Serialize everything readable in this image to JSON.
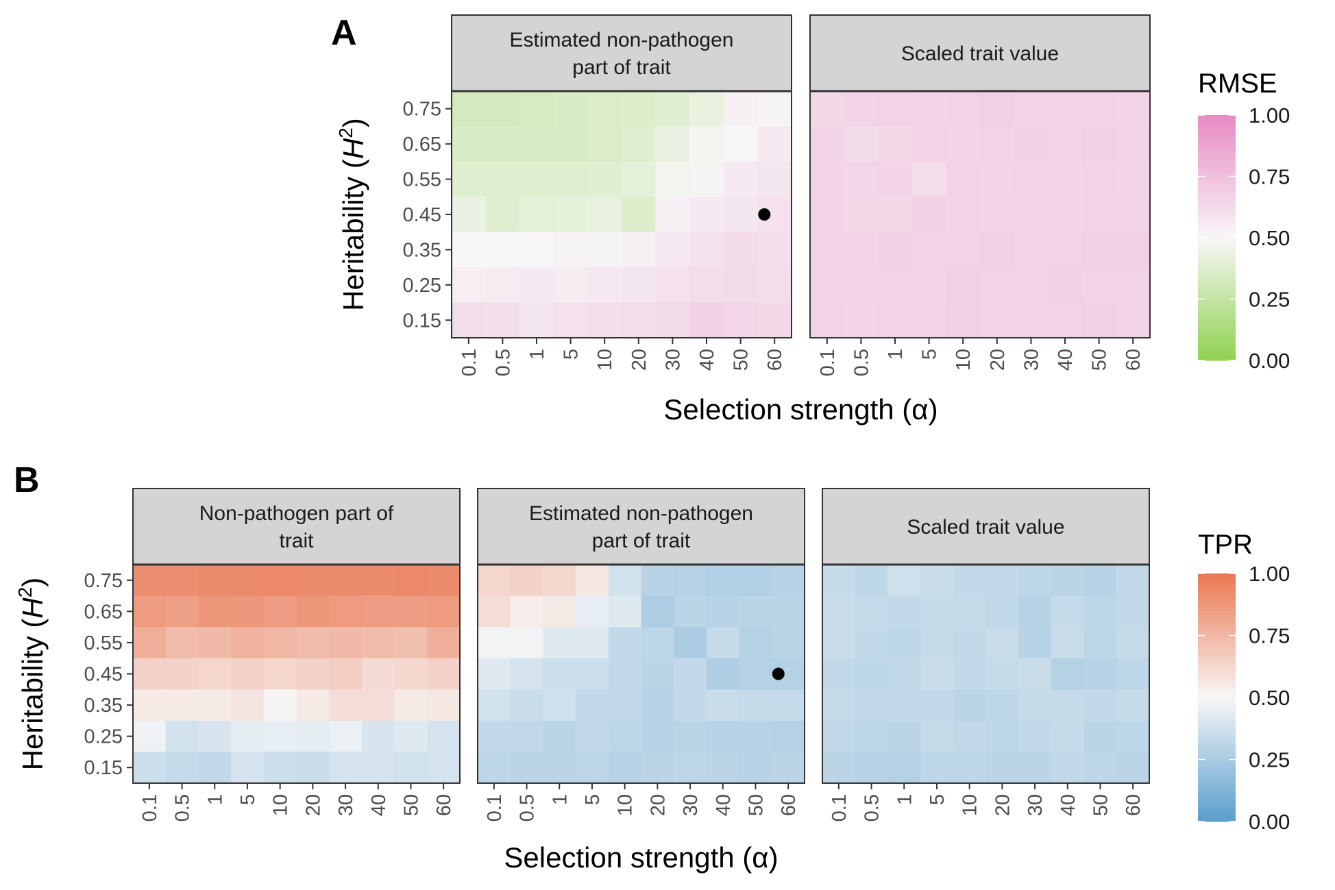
{
  "figure": {
    "panel_labels": [
      "A",
      "B"
    ],
    "marker_note": "black point marks alpha=60, H2=0.45"
  },
  "chart_data": [
    {
      "type": "heatmap",
      "panel": "A",
      "xlabel": "Selection strength (α)",
      "ylabel_text": "Heritability (",
      "ylabel_var": "H",
      "ylabel_sup": "2",
      "ylabel_close": ")",
      "x_categories": [
        "0.1",
        "0.5",
        "1",
        "5",
        "10",
        "20",
        "30",
        "40",
        "50",
        "60"
      ],
      "y_categories": [
        "0.75",
        "0.65",
        "0.55",
        "0.45",
        "0.35",
        "0.25",
        "0.15"
      ],
      "colorbar": {
        "title": "RMSE",
        "range": [
          0,
          1
        ],
        "ticks": [
          "1.00",
          "0.75",
          "0.50",
          "0.25",
          "0.00"
        ],
        "low_color": "#8fd14f",
        "mid_color": "#f7f7f7",
        "high_color": "#e78ac3"
      },
      "marker": {
        "x": "60",
        "y": "0.45"
      },
      "facets": [
        {
          "title_lines": [
            "Estimated non-pathogen",
            "part of trait"
          ],
          "values": [
            [
              0.33,
              0.33,
              0.34,
              0.35,
              0.36,
              0.37,
              0.39,
              0.43,
              0.53,
              0.52
            ],
            [
              0.35,
              0.35,
              0.35,
              0.35,
              0.36,
              0.38,
              0.44,
              0.48,
              0.51,
              0.56
            ],
            [
              0.38,
              0.38,
              0.38,
              0.38,
              0.39,
              0.41,
              0.47,
              0.52,
              0.56,
              0.58
            ],
            [
              0.44,
              0.39,
              0.41,
              0.42,
              0.43,
              0.37,
              0.53,
              0.56,
              0.58,
              0.6
            ],
            [
              0.5,
              0.5,
              0.51,
              0.52,
              0.52,
              0.53,
              0.57,
              0.59,
              0.63,
              0.61
            ],
            [
              0.54,
              0.55,
              0.56,
              0.55,
              0.57,
              0.58,
              0.6,
              0.62,
              0.63,
              0.62
            ],
            [
              0.62,
              0.61,
              0.58,
              0.6,
              0.61,
              0.62,
              0.63,
              0.68,
              0.65,
              0.64
            ]
          ]
        },
        {
          "title_lines": [
            "Scaled trait value"
          ],
          "values": [
            [
              0.64,
              0.66,
              0.67,
              0.66,
              0.67,
              0.68,
              0.67,
              0.67,
              0.67,
              0.66
            ],
            [
              0.66,
              0.63,
              0.64,
              0.67,
              0.66,
              0.67,
              0.68,
              0.66,
              0.68,
              0.67
            ],
            [
              0.66,
              0.65,
              0.66,
              0.62,
              0.67,
              0.66,
              0.67,
              0.66,
              0.67,
              0.66
            ],
            [
              0.67,
              0.64,
              0.64,
              0.68,
              0.67,
              0.66,
              0.66,
              0.66,
              0.67,
              0.67
            ],
            [
              0.67,
              0.67,
              0.68,
              0.67,
              0.67,
              0.68,
              0.67,
              0.67,
              0.68,
              0.68
            ],
            [
              0.67,
              0.67,
              0.67,
              0.66,
              0.68,
              0.67,
              0.67,
              0.68,
              0.67,
              0.67
            ],
            [
              0.67,
              0.66,
              0.67,
              0.67,
              0.68,
              0.67,
              0.67,
              0.67,
              0.68,
              0.67
            ]
          ]
        }
      ]
    },
    {
      "type": "heatmap",
      "panel": "B",
      "xlabel": "Selection strength (α)",
      "ylabel_text": "Heritability (",
      "ylabel_var": "H",
      "ylabel_sup": "2",
      "ylabel_close": ")",
      "x_categories": [
        "0.1",
        "0.5",
        "1",
        "5",
        "10",
        "20",
        "30",
        "40",
        "50",
        "60"
      ],
      "y_categories": [
        "0.75",
        "0.65",
        "0.55",
        "0.45",
        "0.35",
        "0.25",
        "0.15"
      ],
      "colorbar": {
        "title": "TPR",
        "range": [
          0,
          1
        ],
        "ticks": [
          "1.00",
          "0.75",
          "0.50",
          "0.25",
          "0.00"
        ],
        "low_color": "#5a9ecd",
        "mid_color": "#f7f7f7",
        "high_color": "#ea7752"
      },
      "marker": {
        "x": "60",
        "y": "0.45"
      },
      "facets": [
        {
          "title_lines": [
            "Non-pathogen part of",
            "trait"
          ],
          "values": [
            [
              0.91,
              0.91,
              0.92,
              0.92,
              0.93,
              0.92,
              0.92,
              0.92,
              0.93,
              0.92
            ],
            [
              0.86,
              0.84,
              0.88,
              0.87,
              0.85,
              0.88,
              0.86,
              0.85,
              0.85,
              0.86
            ],
            [
              0.78,
              0.73,
              0.74,
              0.77,
              0.75,
              0.73,
              0.74,
              0.73,
              0.72,
              0.78
            ],
            [
              0.64,
              0.64,
              0.63,
              0.64,
              0.63,
              0.64,
              0.66,
              0.61,
              0.62,
              0.64
            ],
            [
              0.55,
              0.55,
              0.55,
              0.57,
              0.51,
              0.55,
              0.6,
              0.6,
              0.55,
              0.56
            ],
            [
              0.47,
              0.38,
              0.4,
              0.44,
              0.45,
              0.44,
              0.46,
              0.4,
              0.42,
              0.39
            ],
            [
              0.36,
              0.34,
              0.33,
              0.39,
              0.36,
              0.35,
              0.39,
              0.39,
              0.38,
              0.39
            ]
          ]
        },
        {
          "title_lines": [
            "Estimated non-pathogen",
            "part of trait"
          ],
          "values": [
            [
              0.63,
              0.65,
              0.62,
              0.56,
              0.38,
              0.3,
              0.29,
              0.28,
              0.28,
              0.3
            ],
            [
              0.6,
              0.54,
              0.55,
              0.45,
              0.42,
              0.27,
              0.31,
              0.3,
              0.31,
              0.31
            ],
            [
              0.48,
              0.48,
              0.42,
              0.42,
              0.33,
              0.32,
              0.26,
              0.34,
              0.29,
              0.31
            ],
            [
              0.42,
              0.39,
              0.36,
              0.36,
              0.33,
              0.31,
              0.33,
              0.27,
              0.29,
              0.29
            ],
            [
              0.38,
              0.35,
              0.37,
              0.33,
              0.33,
              0.3,
              0.33,
              0.35,
              0.34,
              0.34
            ],
            [
              0.33,
              0.33,
              0.31,
              0.33,
              0.32,
              0.3,
              0.31,
              0.3,
              0.3,
              0.29
            ],
            [
              0.32,
              0.31,
              0.31,
              0.32,
              0.3,
              0.31,
              0.32,
              0.31,
              0.3,
              0.31
            ]
          ]
        },
        {
          "title_lines": [
            "Scaled trait value"
          ],
          "values": [
            [
              0.34,
              0.32,
              0.37,
              0.35,
              0.33,
              0.33,
              0.32,
              0.31,
              0.3,
              0.33
            ],
            [
              0.35,
              0.34,
              0.33,
              0.34,
              0.34,
              0.33,
              0.3,
              0.34,
              0.32,
              0.33
            ],
            [
              0.35,
              0.33,
              0.32,
              0.34,
              0.33,
              0.35,
              0.3,
              0.35,
              0.32,
              0.34
            ],
            [
              0.33,
              0.32,
              0.33,
              0.35,
              0.33,
              0.34,
              0.35,
              0.29,
              0.3,
              0.32
            ],
            [
              0.34,
              0.33,
              0.33,
              0.33,
              0.31,
              0.32,
              0.34,
              0.34,
              0.33,
              0.34
            ],
            [
              0.33,
              0.32,
              0.31,
              0.34,
              0.33,
              0.32,
              0.33,
              0.34,
              0.31,
              0.32
            ],
            [
              0.31,
              0.3,
              0.29,
              0.32,
              0.32,
              0.31,
              0.31,
              0.33,
              0.32,
              0.31
            ]
          ]
        }
      ]
    }
  ]
}
